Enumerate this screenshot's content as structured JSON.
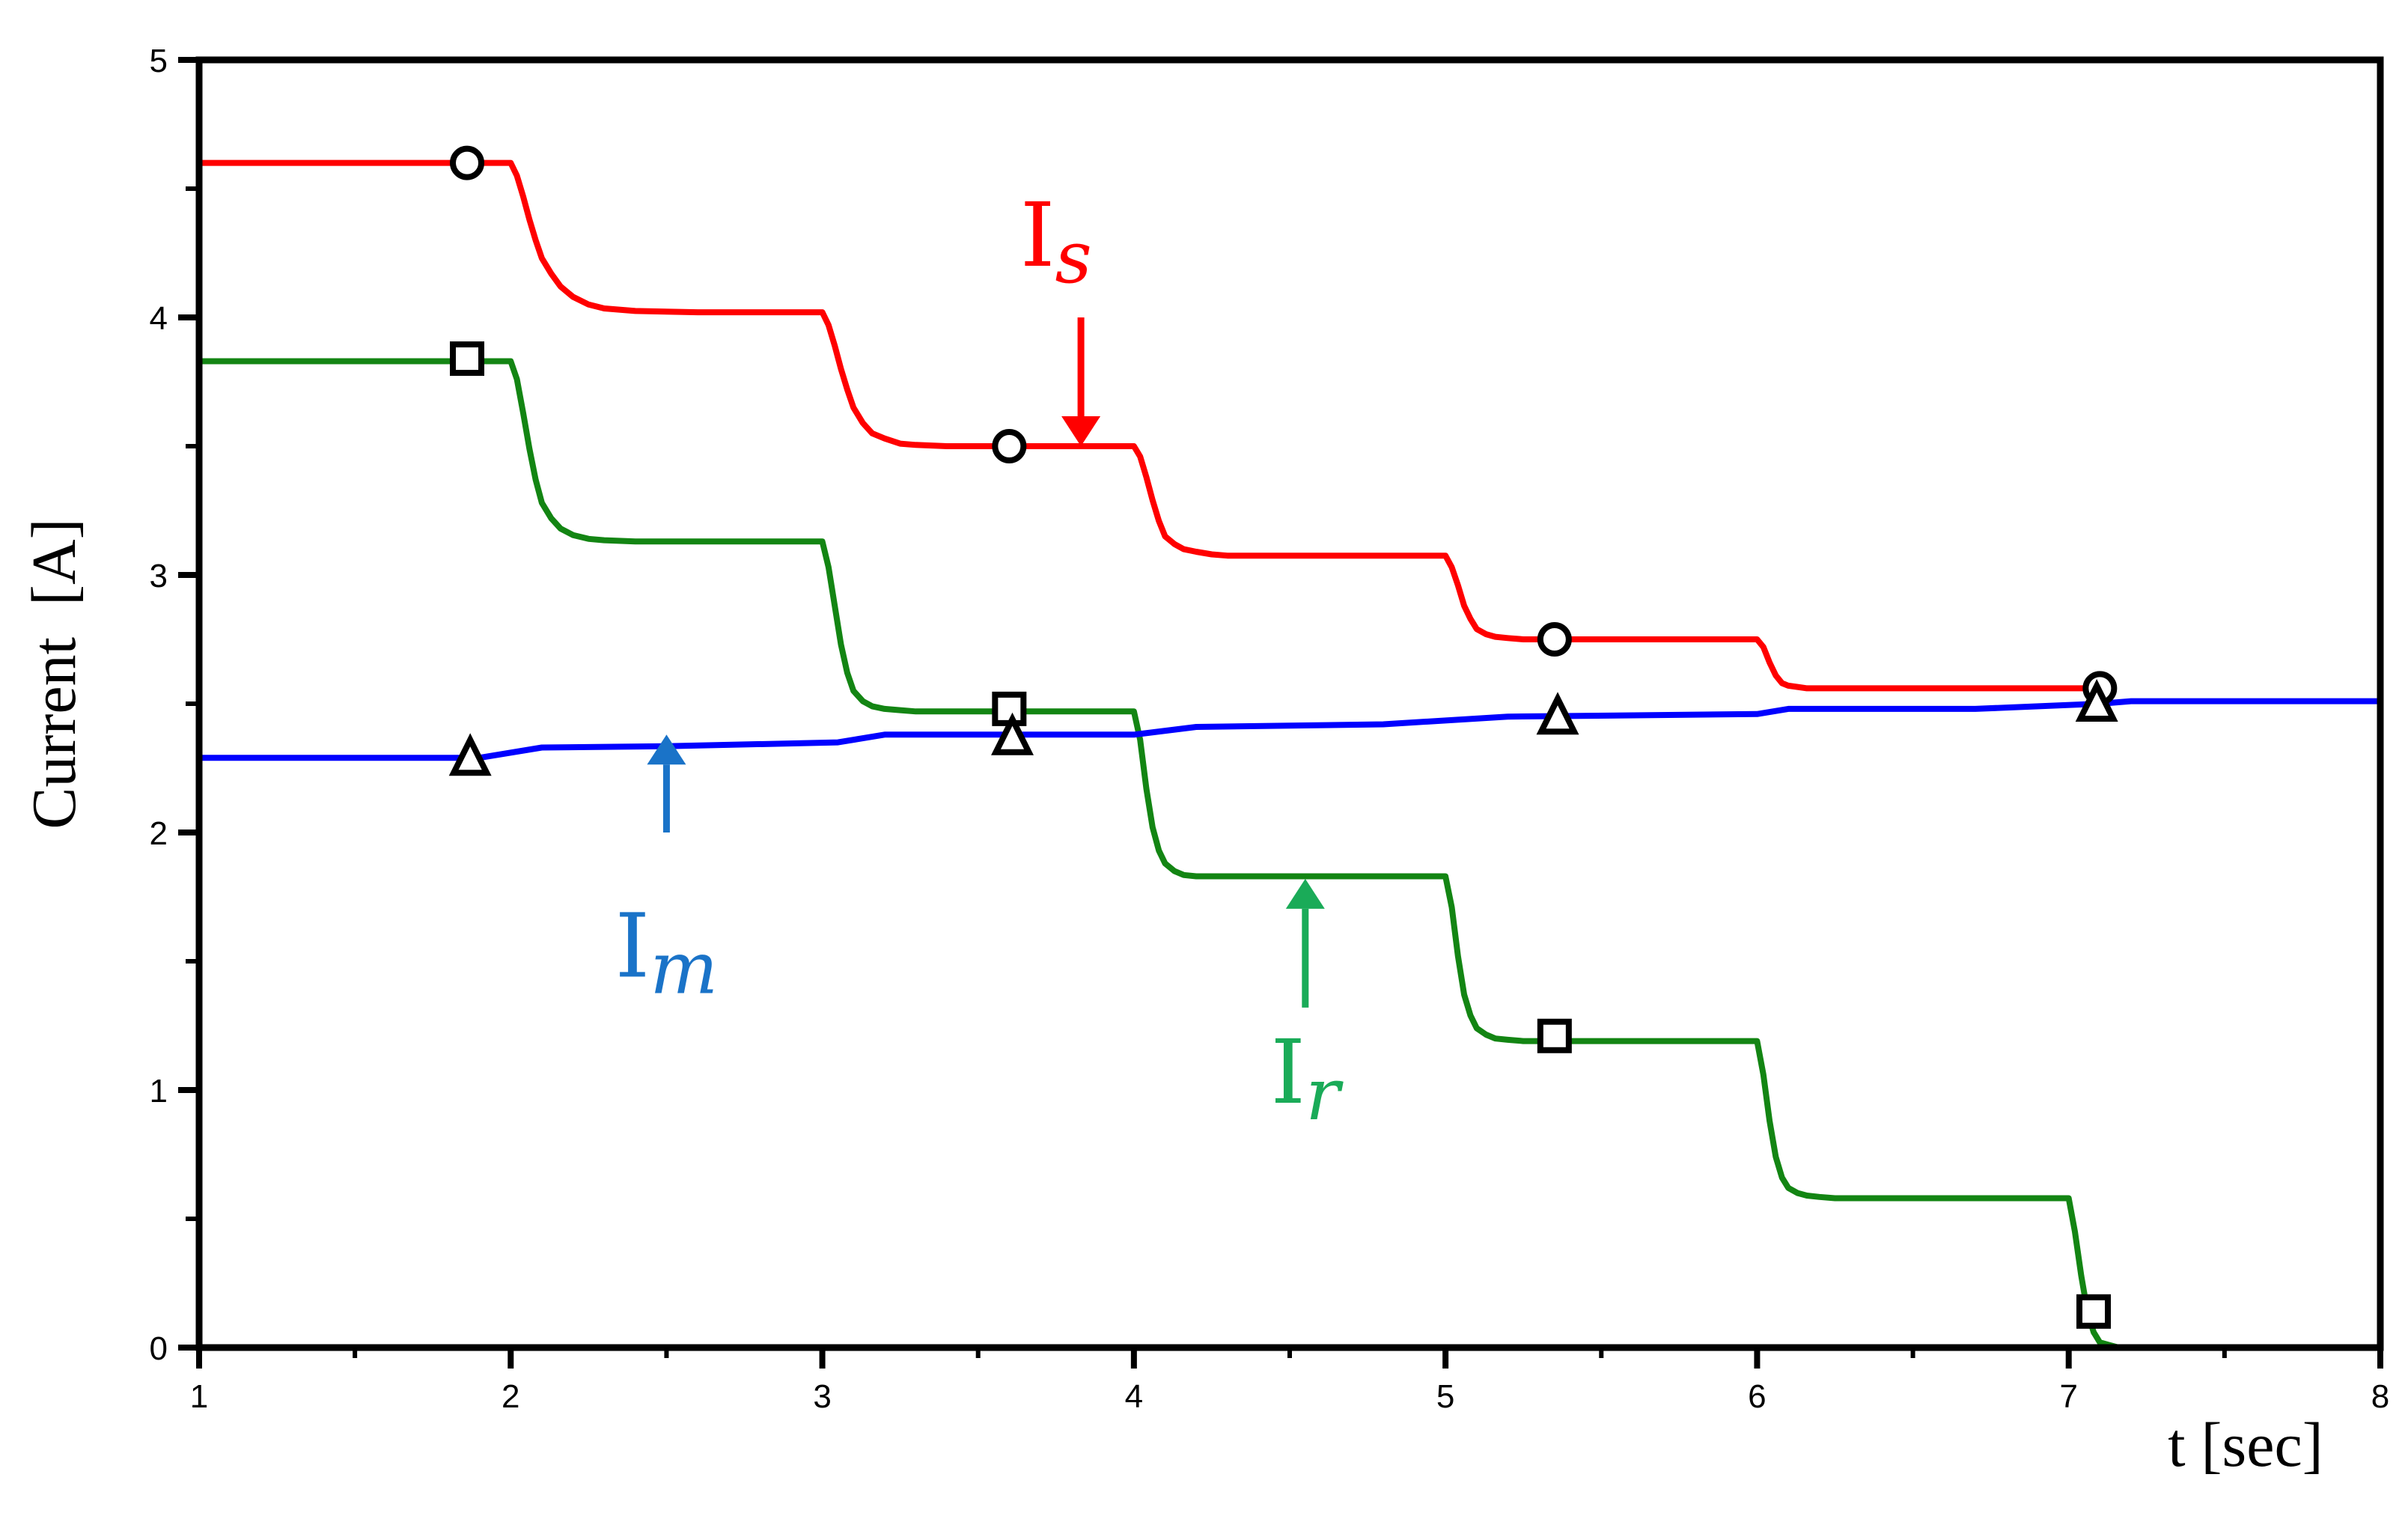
{
  "chart_data": {
    "type": "line",
    "xlabel": "t [sec]",
    "ylabel": "Current  [A]",
    "xlim": [
      1,
      8
    ],
    "ylim": [
      0,
      5
    ],
    "xticks": [
      1,
      2,
      3,
      4,
      5,
      6,
      7,
      8
    ],
    "yticks": [
      0,
      1,
      2,
      3,
      4,
      5
    ],
    "grid": false,
    "legend": "inline arrow labels",
    "series": [
      {
        "name": "Is",
        "label_main": "I",
        "label_sub": "s",
        "color": "#ff0000",
        "marker": "circle",
        "x": [
          1.0,
          2.0,
          2.02,
          2.04,
          2.06,
          2.08,
          2.1,
          2.13,
          2.16,
          2.2,
          2.25,
          2.3,
          2.4,
          2.6,
          3.0,
          3.02,
          3.04,
          3.06,
          3.08,
          3.1,
          3.13,
          3.16,
          3.2,
          3.25,
          3.3,
          3.4,
          3.6,
          4.0,
          4.02,
          4.04,
          4.06,
          4.08,
          4.1,
          4.13,
          4.16,
          4.2,
          4.25,
          4.3,
          4.4,
          4.6,
          5.0,
          5.02,
          5.04,
          5.06,
          5.08,
          5.1,
          5.13,
          5.16,
          5.2,
          5.25,
          5.3,
          5.4,
          5.6,
          6.0,
          6.02,
          6.04,
          6.06,
          6.08,
          6.1,
          6.13,
          6.16,
          6.2,
          6.25,
          6.3,
          6.4,
          6.6,
          7.1
        ],
        "y": [
          4.6,
          4.6,
          4.55,
          4.47,
          4.38,
          4.3,
          4.23,
          4.17,
          4.12,
          4.08,
          4.05,
          4.035,
          4.025,
          4.02,
          4.02,
          3.97,
          3.89,
          3.8,
          3.72,
          3.65,
          3.59,
          3.55,
          3.53,
          3.51,
          3.505,
          3.5,
          3.5,
          3.5,
          3.46,
          3.38,
          3.29,
          3.21,
          3.15,
          3.12,
          3.1,
          3.09,
          3.08,
          3.075,
          3.075,
          3.075,
          3.075,
          3.03,
          2.96,
          2.88,
          2.83,
          2.79,
          2.77,
          2.76,
          2.755,
          2.75,
          2.75,
          2.75,
          2.75,
          2.75,
          2.72,
          2.66,
          2.61,
          2.58,
          2.57,
          2.565,
          2.56,
          2.56,
          2.56,
          2.56,
          2.56,
          2.56,
          2.56
        ]
      },
      {
        "name": "Ir",
        "label_main": "I",
        "label_sub": "r",
        "color": "#138513",
        "marker": "square",
        "x": [
          1.0,
          2.0,
          2.02,
          2.04,
          2.06,
          2.08,
          2.1,
          2.13,
          2.16,
          2.2,
          2.25,
          2.3,
          2.4,
          2.6,
          3.0,
          3.02,
          3.04,
          3.06,
          3.08,
          3.1,
          3.13,
          3.16,
          3.2,
          3.25,
          3.3,
          3.4,
          3.6,
          4.0,
          4.02,
          4.04,
          4.06,
          4.08,
          4.1,
          4.13,
          4.16,
          4.2,
          4.25,
          4.3,
          4.4,
          4.6,
          5.0,
          5.02,
          5.04,
          5.06,
          5.08,
          5.1,
          5.13,
          5.16,
          5.2,
          5.25,
          5.3,
          5.4,
          5.6,
          6.0,
          6.02,
          6.04,
          6.06,
          6.08,
          6.1,
          6.13,
          6.16,
          6.2,
          6.25,
          6.3,
          6.4,
          6.6,
          7.0,
          7.02,
          7.04,
          7.06,
          7.08,
          7.1,
          7.13,
          7.16,
          7.2,
          7.25,
          8.0
        ],
        "y": [
          3.83,
          3.83,
          3.76,
          3.63,
          3.49,
          3.37,
          3.28,
          3.22,
          3.18,
          3.155,
          3.14,
          3.135,
          3.13,
          3.13,
          3.13,
          3.03,
          2.88,
          2.73,
          2.62,
          2.55,
          2.51,
          2.49,
          2.48,
          2.475,
          2.47,
          2.47,
          2.47,
          2.47,
          2.36,
          2.17,
          2.02,
          1.93,
          1.88,
          1.85,
          1.835,
          1.83,
          1.83,
          1.83,
          1.83,
          1.83,
          1.83,
          1.71,
          1.52,
          1.37,
          1.29,
          1.24,
          1.215,
          1.2,
          1.195,
          1.19,
          1.19,
          1.19,
          1.19,
          1.19,
          1.06,
          0.88,
          0.74,
          0.66,
          0.62,
          0.6,
          0.59,
          0.585,
          0.58,
          0.58,
          0.58,
          0.58,
          0.58,
          0.45,
          0.28,
          0.14,
          0.06,
          0.02,
          0.01,
          0.0,
          0.0,
          0.0,
          0.0
        ]
      },
      {
        "name": "Im",
        "label_main": "I",
        "label_sub": "m",
        "color": "#0000ff",
        "marker": "triangle",
        "x": [
          1.0,
          1.9,
          2.1,
          2.5,
          3.05,
          3.2,
          4.0,
          4.2,
          4.8,
          5.2,
          6.0,
          6.1,
          6.7,
          7.1,
          7.2,
          8.0
        ],
        "y": [
          2.29,
          2.29,
          2.33,
          2.335,
          2.35,
          2.38,
          2.38,
          2.41,
          2.42,
          2.45,
          2.46,
          2.48,
          2.48,
          2.5,
          2.51,
          2.51
        ]
      }
    ],
    "markers": {
      "Is": [
        [
          1.86,
          4.6
        ],
        [
          3.6,
          3.5
        ],
        [
          5.35,
          2.75
        ],
        [
          7.1,
          2.56
        ]
      ],
      "Ir": [
        [
          1.86,
          3.84
        ],
        [
          3.6,
          2.48
        ],
        [
          5.35,
          1.21
        ],
        [
          7.08,
          0.14
        ]
      ],
      "Im": [
        [
          1.87,
          2.29
        ],
        [
          3.61,
          2.37
        ],
        [
          5.36,
          2.45
        ],
        [
          7.09,
          2.5
        ]
      ]
    },
    "arrows": [
      {
        "series": "Is",
        "tail": [
          3.83,
          4.0
        ],
        "head": [
          3.83,
          3.5
        ],
        "label_at": [
          3.75,
          4.2
        ]
      },
      {
        "series": "Im",
        "tail": [
          2.5,
          2.0
        ],
        "head": [
          2.5,
          2.38
        ],
        "label_at": [
          2.5,
          1.44
        ]
      },
      {
        "series": "Ir",
        "tail": [
          4.55,
          1.32
        ],
        "head": [
          4.55,
          1.82
        ],
        "label_at": [
          4.55,
          0.95
        ]
      }
    ],
    "arrow_colors": {
      "Is": "#ff0000",
      "Im": "#1a73c8",
      "Ir": "#1aab58"
    }
  }
}
